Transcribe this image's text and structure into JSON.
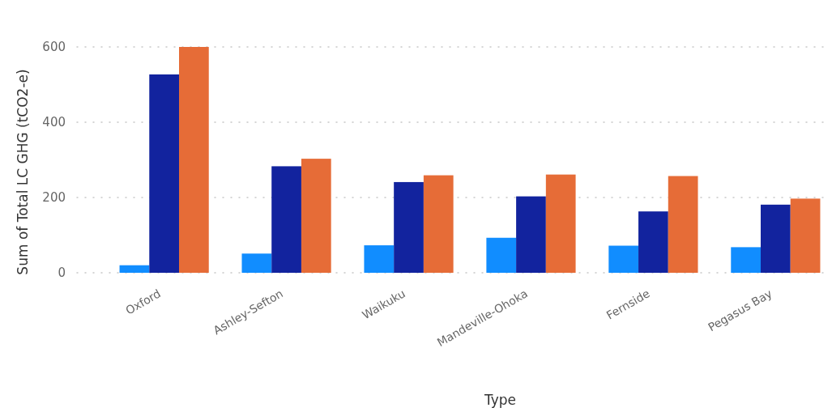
{
  "chart_data": {
    "type": "bar",
    "xlabel": "Type",
    "ylabel": "Sum of Total LC GHG (tCO2-e)",
    "categories": [
      "Oxford",
      "Ashley-Sefton",
      "Waikuku",
      "Mandeville-Ohoka",
      "Fernside",
      "Pegasus Bay"
    ],
    "series": [
      {
        "color": "#118dff",
        "values": [
          20,
          51,
          73,
          93,
          72,
          68
        ]
      },
      {
        "color": "#12239e",
        "values": [
          527,
          283,
          241,
          203,
          163,
          181
        ]
      },
      {
        "color": "#e66c37",
        "values": [
          600,
          303,
          259,
          261,
          257,
          197
        ]
      }
    ],
    "ylim": [
      0,
      600
    ],
    "yticks": [
      0,
      200,
      400,
      600
    ],
    "grid": "y"
  }
}
